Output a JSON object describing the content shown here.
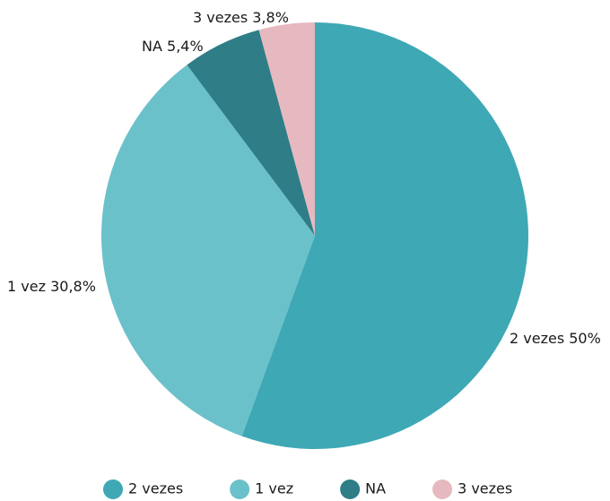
{
  "chart_data": {
    "type": "pie",
    "categories": [
      "2 vezes",
      "1 vez",
      "NA",
      "3 vezes"
    ],
    "values": [
      50,
      30.8,
      5.4,
      3.8
    ],
    "value_labels": [
      "50%",
      "30,8%",
      "5,4%",
      "3,8%"
    ],
    "colors": [
      "#3ea8b5",
      "#6bc1ca",
      "#2e7d87",
      "#e6b9c0"
    ],
    "legend": "bottom"
  }
}
